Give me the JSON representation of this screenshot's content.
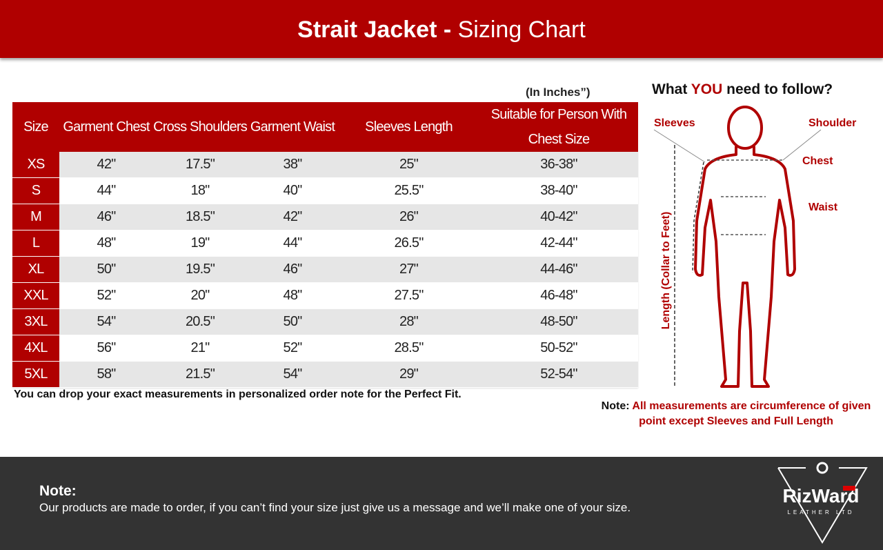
{
  "header": {
    "title_bold": "Strait Jacket -",
    "title_rest": "Sizing Chart"
  },
  "table": {
    "units": "(In Inches”)",
    "headers": [
      "Size",
      "Garment Chest",
      "Cross Shoulders",
      "Garment Waist",
      "Sleeves Length",
      "Suitable for Person With Chest Size"
    ],
    "rows": [
      [
        "XS",
        "42\"",
        "17.5\"",
        "38\"",
        "25\"",
        "36-38\""
      ],
      [
        "S",
        "44\"",
        "18\"",
        "40\"",
        "25.5\"",
        "38-40\""
      ],
      [
        "M",
        "46\"",
        "18.5\"",
        "42\"",
        "26\"",
        "40-42\""
      ],
      [
        "L",
        "48\"",
        "19\"",
        "44\"",
        "26.5\"",
        "42-44\""
      ],
      [
        "XL",
        "50\"",
        "19.5\"",
        "46\"",
        "27\"",
        "44-46\""
      ],
      [
        "XXL",
        "52\"",
        "20\"",
        "48\"",
        "27.5\"",
        "46-48\""
      ],
      [
        "3XL",
        "54\"",
        "20.5\"",
        "50\"",
        "28\"",
        "48-50\""
      ],
      [
        "4XL",
        "56\"",
        "21\"",
        "52\"",
        "28.5\"",
        "50-52\""
      ],
      [
        "5XL",
        "58\"",
        "21.5\"",
        "54\"",
        "29\"",
        "52-54\""
      ]
    ],
    "footnote": "You can drop your exact measurements in personalized order note for the Perfect Fit."
  },
  "figure": {
    "title_start": "What",
    "title_highlight": "YOU",
    "title_end": "need to follow?",
    "labels": {
      "sleeves": "Sleeves",
      "shoulder": "Shoulder",
      "chest": "Chest",
      "waist": "Waist",
      "length": "Length (Collar to Feet)"
    },
    "note_label": "Note:",
    "note_text": "All measurements are circumference of given point except Sleeves and Full Length"
  },
  "footer": {
    "note_label": "Note:",
    "note_text": "Our products are made to order, if you can’t find your size just give us a message and we’ll make one of your size.",
    "logo_name": "RizWard",
    "logo_sub": "LEATHER LTD"
  }
}
